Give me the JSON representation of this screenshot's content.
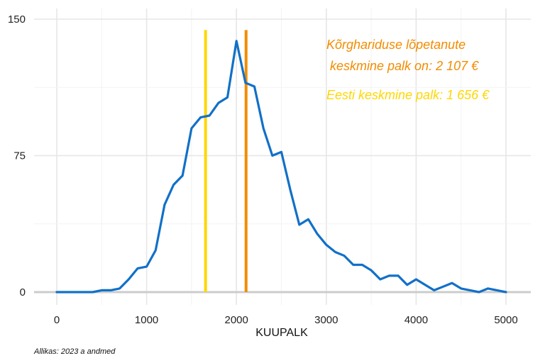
{
  "chart_data": {
    "type": "line",
    "xlabel": "KUUPALK",
    "ylabel": "",
    "xlim": [
      -150,
      5300
    ],
    "ylim": [
      0,
      150
    ],
    "xticks": [
      0,
      1000,
      2000,
      3000,
      4000,
      5000
    ],
    "yticks": [
      0,
      75,
      150
    ],
    "xtick_labels": [
      "0",
      "1000",
      "2000",
      "3000",
      "4000",
      "5000"
    ],
    "ytick_labels": [
      "0",
      "75",
      "150"
    ],
    "grid": true,
    "series": [
      {
        "color": "#1170C8",
        "x": [
          0,
          100,
          200,
          300,
          400,
          500,
          600,
          700,
          800,
          900,
          1000,
          1100,
          1200,
          1300,
          1400,
          1500,
          1600,
          1700,
          1800,
          1900,
          2000,
          2100,
          2200,
          2300,
          2400,
          2500,
          2600,
          2700,
          2800,
          2900,
          3000,
          3100,
          3200,
          3300,
          3400,
          3500,
          3600,
          3700,
          3800,
          3900,
          4000,
          4100,
          4200,
          4300,
          4400,
          4500,
          4600,
          4700,
          4800,
          4900,
          5000
        ],
        "y": [
          0,
          0,
          0,
          0,
          0,
          1,
          1,
          2,
          7,
          13,
          14,
          23,
          48,
          59,
          64,
          90,
          96,
          97,
          104,
          107,
          138,
          115,
          113,
          90,
          75,
          77,
          56,
          37,
          40,
          32,
          26,
          22,
          20,
          15,
          15,
          12,
          7,
          9,
          9,
          4,
          7,
          4,
          1,
          3,
          5,
          2,
          1,
          0,
          2,
          1,
          0
        ]
      }
    ],
    "vlines": [
      {
        "x": 1656,
        "color": "#FFD700",
        "ymax": 144
      },
      {
        "x": 2107,
        "color": "#F28C00",
        "ymax": 144
      }
    ],
    "annotations": [
      {
        "text": "Kõrghariduse lõpetanute",
        "color": "#F28C00"
      },
      {
        "text": " keskmine palk on: 2 107 €",
        "color": "#F28C00"
      },
      {
        "text": "Eesti keskmine palk: 1 656 €",
        "color": "#FFD700"
      }
    ]
  },
  "source_note": "Allikas: 2023 a andmed"
}
